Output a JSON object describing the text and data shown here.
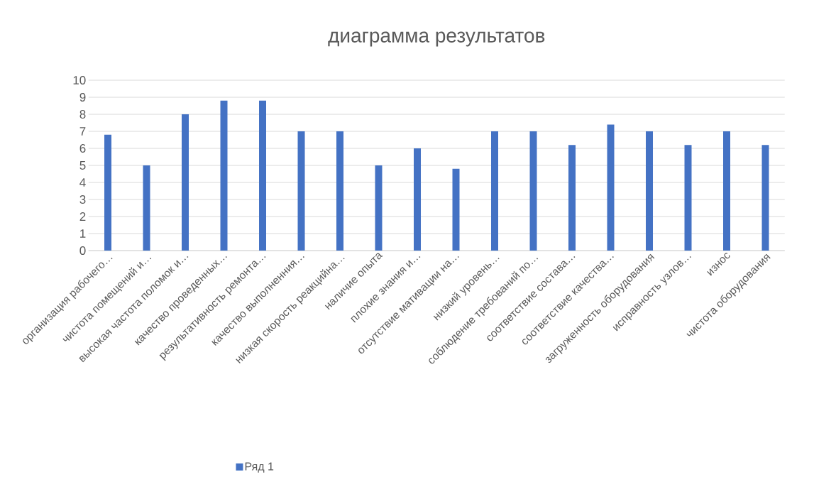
{
  "chart_data": {
    "type": "bar",
    "title": "диаграмма результатов",
    "categories": [
      "организация рабочего…",
      "чистота помещений и…",
      "высокая частота поломок и…",
      "качество проведенных…",
      "результативность ремонта…",
      "качество выполненния…",
      "низкая скорость реакцийна…",
      "наличие опыта",
      "плохие знания и…",
      "отсутствие мативации на…",
      "низкий уровень…",
      "соблюдение требований по…",
      "соответствие состава…",
      "соответствие качества…",
      "загруженность оборудования",
      "исправность узлов…",
      "износ",
      "чистота оборудования"
    ],
    "series": [
      {
        "name": "Ряд 1",
        "color": "#4472c4",
        "values": [
          6.8,
          5,
          8,
          8.8,
          8.8,
          7,
          7,
          5,
          6,
          4.8,
          7,
          7,
          6.2,
          7.4,
          7,
          6.2,
          7,
          6.2
        ]
      }
    ],
    "ylim": [
      0,
      10
    ],
    "yticks": [
      0,
      1,
      2,
      3,
      4,
      5,
      6,
      7,
      8,
      9,
      10
    ],
    "grid": "y",
    "legend": "bottom"
  }
}
